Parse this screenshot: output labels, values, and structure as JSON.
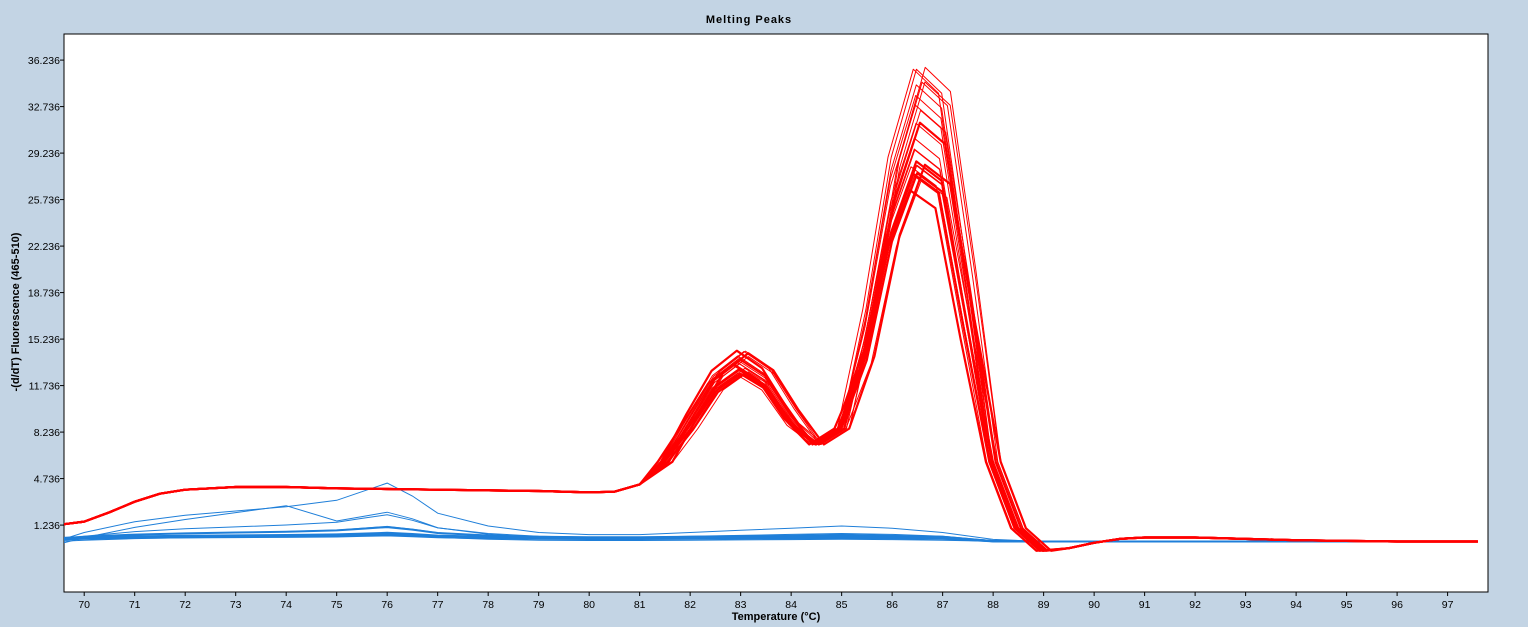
{
  "chart_data": {
    "type": "line",
    "title": "Melting Peaks",
    "xlabel": "Temperature (°C)",
    "ylabel": "-(d/dT) Fluorescence (465-510)",
    "xlim": [
      69.6,
      97.8
    ],
    "ylim": [
      -3.8,
      38.2
    ],
    "x_ticks": [
      70,
      71,
      72,
      73,
      74,
      75,
      76,
      77,
      78,
      79,
      80,
      81,
      82,
      83,
      84,
      85,
      86,
      87,
      88,
      89,
      90,
      91,
      92,
      93,
      94,
      95,
      96,
      97
    ],
    "y_ticks": [
      "1.236",
      "4.736",
      "8.236",
      "11.736",
      "15.236",
      "18.736",
      "22.236",
      "25.736",
      "29.236",
      "32.736",
      "36.236"
    ],
    "y_tick_values": [
      1.236,
      4.736,
      8.236,
      11.736,
      15.236,
      18.736,
      22.236,
      25.736,
      29.236,
      32.736,
      36.236
    ],
    "grid": false,
    "legend": "none",
    "series_groups": [
      {
        "color": "#ff0000",
        "curve_count": 24,
        "x": [
          69.6,
          70.0,
          70.5,
          71.0,
          71.5,
          72.0,
          73.0,
          74.0,
          75.0,
          76.0,
          77.0,
          78.0,
          79.0,
          80.0,
          80.5,
          81.0,
          81.5,
          82.0,
          82.5,
          83.0,
          83.5,
          84.0,
          84.5,
          85.0,
          85.5,
          86.0,
          86.5,
          87.0,
          87.5,
          88.0,
          88.5,
          89.0,
          89.5,
          90.0,
          90.5,
          91.0,
          92.0,
          93.0,
          94.0,
          95.0,
          96.0,
          97.0,
          97.6
        ],
        "y": [
          1.3,
          1.5,
          2.2,
          3.0,
          3.6,
          3.9,
          4.1,
          4.1,
          4.0,
          3.95,
          3.9,
          3.85,
          3.8,
          3.7,
          3.75,
          4.3,
          6.0,
          8.8,
          11.8,
          13.2,
          12.0,
          9.2,
          7.3,
          8.5,
          14.5,
          24.0,
          29.5,
          28.0,
          17.0,
          6.0,
          1.0,
          -0.7,
          -0.5,
          -0.1,
          0.2,
          0.3,
          0.3,
          0.2,
          0.1,
          0.05,
          0.0,
          0.0,
          0.0
        ]
      },
      {
        "color": "#1f7fd9",
        "curve_count": 10,
        "x": [
          69.6,
          70,
          71,
          72,
          73,
          74,
          75,
          75.5,
          76,
          76.5,
          77,
          78,
          79,
          80,
          81,
          82,
          83,
          84,
          85,
          86,
          87,
          88,
          89,
          90,
          91,
          92,
          93,
          94,
          95,
          96,
          97,
          97.6
        ],
        "y": [
          0.0,
          0.15,
          0.4,
          0.55,
          0.65,
          0.75,
          0.9,
          1.1,
          1.3,
          1.0,
          0.6,
          0.3,
          0.15,
          0.1,
          0.1,
          0.15,
          0.2,
          0.25,
          0.3,
          0.25,
          0.15,
          0.05,
          0.0,
          0.0,
          0.0,
          0.0,
          0.0,
          0.0,
          0.0,
          0.0,
          0.0,
          0.0
        ]
      }
    ]
  }
}
